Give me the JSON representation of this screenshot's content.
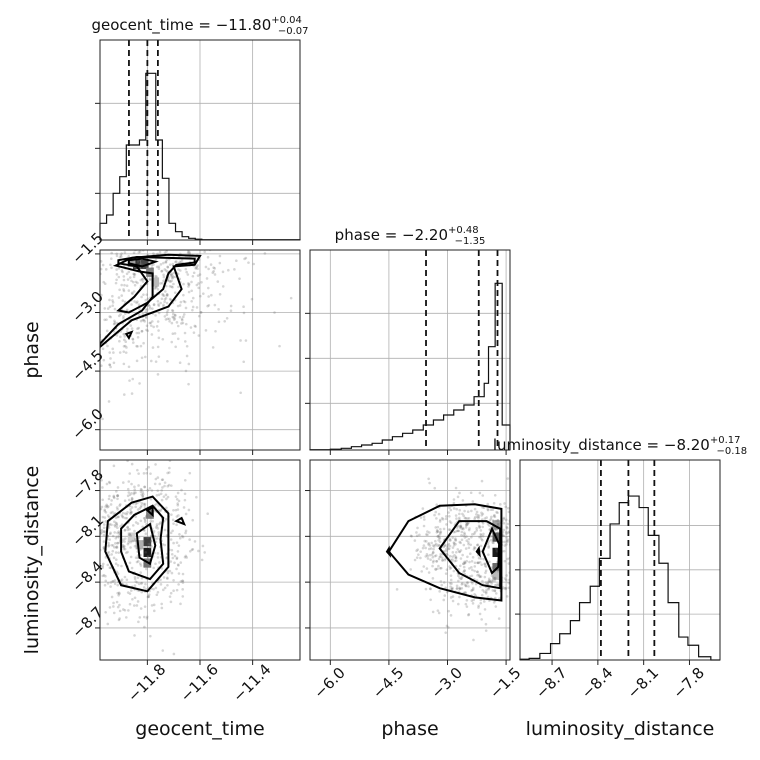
{
  "chart_data": {
    "type": "corner",
    "parameters": [
      "geocent_time",
      "phase",
      "luminosity_distance"
    ],
    "axis_labels": {
      "geocent_time": "geocent_time",
      "phase": "phase",
      "luminosity_distance": "luminosity_distance"
    },
    "ranges": {
      "geocent_time": [
        -11.98,
        -11.22
      ],
      "phase": [
        -6.52,
        -1.4
      ],
      "luminosity_distance": [
        -8.91,
        -7.6
      ]
    },
    "ticks": {
      "geocent_time": {
        "values": [
          -11.8,
          -11.6,
          -11.4
        ],
        "labels": [
          "−11.8",
          "−11.6",
          "−11.4"
        ]
      },
      "phase": {
        "values": [
          -6.0,
          -4.5,
          -3.0,
          -1.5
        ],
        "labels": [
          "−6.0",
          "−4.5",
          "−3.0",
          "−1.5"
        ]
      },
      "luminosity_distance": {
        "values": [
          -8.7,
          -8.4,
          -8.1,
          -7.8
        ],
        "labels": [
          "−8.7",
          "−8.4",
          "−8.1",
          "−7.8"
        ]
      }
    },
    "grid": true,
    "marginals": [
      {
        "param": "geocent_time",
        "title": {
          "prefix": "geocent_time = −11.80",
          "upper": "+0.04",
          "lower": "−0.07"
        },
        "quantiles": [
          -11.87,
          -11.8,
          -11.76
        ],
        "hist": [
          {
            "x": -11.98,
            "y": 0.1
          },
          {
            "x": -11.955,
            "y": 0.15
          },
          {
            "x": -11.93,
            "y": 0.28
          },
          {
            "x": -11.905,
            "y": 0.38
          },
          {
            "x": -11.88,
            "y": 0.57
          },
          {
            "x": -11.855,
            "y": 0.57
          },
          {
            "x": -11.83,
            "y": 0.6
          },
          {
            "x": -11.806,
            "y": 1.0
          },
          {
            "x": -11.787,
            "y": 1.0
          },
          {
            "x": -11.768,
            "y": 0.6
          },
          {
            "x": -11.743,
            "y": 0.37
          },
          {
            "x": -11.718,
            "y": 0.1
          },
          {
            "x": -11.693,
            "y": 0.05
          },
          {
            "x": -11.668,
            "y": 0.02
          },
          {
            "x": -11.643,
            "y": 0.01
          },
          {
            "x": -11.618,
            "y": 0.005
          },
          {
            "x": -11.593,
            "y": 0.002
          },
          {
            "x": -11.22,
            "y": 0.0
          }
        ]
      },
      {
        "param": "phase",
        "title": {
          "prefix": "phase = −2.20",
          "upper": "+0.48",
          "lower": "−1.35"
        },
        "quantiles": [
          -3.55,
          -2.2,
          -1.72
        ],
        "hist": [
          {
            "x": -6.52,
            "y": 0.002
          },
          {
            "x": -6.0,
            "y": 0.005
          },
          {
            "x": -5.72,
            "y": 0.01
          },
          {
            "x": -5.46,
            "y": 0.02
          },
          {
            "x": -5.2,
            "y": 0.03
          },
          {
            "x": -4.93,
            "y": 0.04
          },
          {
            "x": -4.67,
            "y": 0.06
          },
          {
            "x": -4.41,
            "y": 0.08
          },
          {
            "x": -4.15,
            "y": 0.1
          },
          {
            "x": -3.89,
            "y": 0.12
          },
          {
            "x": -3.62,
            "y": 0.15
          },
          {
            "x": -3.36,
            "y": 0.18
          },
          {
            "x": -3.1,
            "y": 0.21
          },
          {
            "x": -2.84,
            "y": 0.24
          },
          {
            "x": -2.58,
            "y": 0.27
          },
          {
            "x": -2.32,
            "y": 0.32
          },
          {
            "x": -2.06,
            "y": 0.4
          },
          {
            "x": -1.95,
            "y": 0.62
          },
          {
            "x": -1.78,
            "y": 1.0
          },
          {
            "x": -1.6,
            "y": 0.15
          },
          {
            "x": -1.4,
            "y": 0.0
          }
        ]
      },
      {
        "param": "luminosity_distance",
        "title": {
          "prefix": "luminosity_distance = −8.20",
          "upper": "+0.17",
          "lower": "−0.18"
        },
        "quantiles": [
          -8.38,
          -8.2,
          -8.03
        ],
        "hist": [
          {
            "x": -8.91,
            "y": 0.005
          },
          {
            "x": -8.85,
            "y": 0.01
          },
          {
            "x": -8.78,
            "y": 0.04
          },
          {
            "x": -8.71,
            "y": 0.1
          },
          {
            "x": -8.65,
            "y": 0.16
          },
          {
            "x": -8.58,
            "y": 0.24
          },
          {
            "x": -8.52,
            "y": 0.35
          },
          {
            "x": -8.45,
            "y": 0.45
          },
          {
            "x": -8.39,
            "y": 0.62
          },
          {
            "x": -8.32,
            "y": 0.83
          },
          {
            "x": -8.26,
            "y": 0.96
          },
          {
            "x": -8.2,
            "y": 1.0
          },
          {
            "x": -8.13,
            "y": 0.93
          },
          {
            "x": -8.07,
            "y": 0.76
          },
          {
            "x": -8.0,
            "y": 0.59
          },
          {
            "x": -7.94,
            "y": 0.35
          },
          {
            "x": -7.87,
            "y": 0.14
          },
          {
            "x": -7.81,
            "y": 0.09
          },
          {
            "x": -7.74,
            "y": 0.02
          },
          {
            "x": -7.66,
            "y": 0.0
          }
        ]
      }
    ],
    "joint": [
      {
        "x": "geocent_time",
        "y": "phase",
        "density": [
          {
            "x": -11.84,
            "y": -1.75,
            "v": 0.9
          },
          {
            "x": -11.81,
            "y": -1.75,
            "v": 0.8
          },
          {
            "x": -11.79,
            "y": -1.95,
            "v": 0.55
          },
          {
            "x": -11.77,
            "y": -2.2,
            "v": 0.3
          },
          {
            "x": -11.86,
            "y": -1.7,
            "v": 0.4
          }
        ],
        "contours": [
          [
            [
              -11.91,
              -1.66
            ],
            [
              -11.84,
              -1.58
            ],
            [
              -11.74,
              -1.6
            ],
            [
              -11.62,
              -1.62
            ],
            [
              -11.62,
              -1.72
            ],
            [
              -11.69,
              -1.78
            ],
            [
              -11.72,
              -2.0
            ],
            [
              -11.74,
              -2.4
            ],
            [
              -11.8,
              -2.75
            ],
            [
              -11.87,
              -3.0
            ],
            [
              -11.91,
              -2.95
            ],
            [
              -11.85,
              -2.6
            ],
            [
              -11.8,
              -2.2
            ],
            [
              -11.84,
              -1.82
            ],
            [
              -11.91,
              -1.74
            ],
            [
              -11.91,
              -1.66
            ]
          ],
          [
            [
              -11.98,
              -3.8
            ],
            [
              -11.91,
              -3.3
            ],
            [
              -11.82,
              -2.95
            ],
            [
              -11.78,
              -2.6
            ],
            [
              -11.78,
              -2.0
            ],
            [
              -11.83,
              -1.95
            ],
            [
              -11.92,
              -1.8
            ],
            [
              -11.86,
              -1.6
            ],
            [
              -11.72,
              -1.52
            ],
            [
              -11.6,
              -1.55
            ],
            [
              -11.62,
              -1.78
            ],
            [
              -11.7,
              -1.82
            ],
            [
              -11.67,
              -2.4
            ],
            [
              -11.72,
              -2.85
            ],
            [
              -11.86,
              -3.2
            ],
            [
              -11.98,
              -3.88
            ]
          ],
          [
            [
              -11.87,
              -1.66
            ],
            [
              -11.82,
              -1.62
            ],
            [
              -11.77,
              -1.7
            ],
            [
              -11.82,
              -1.82
            ],
            [
              -11.87,
              -1.74
            ],
            [
              -11.87,
              -1.66
            ]
          ],
          [
            [
              -11.88,
              -3.55
            ],
            [
              -11.86,
              -3.5
            ],
            [
              -11.87,
              -3.65
            ],
            [
              -11.88,
              -3.55
            ]
          ]
        ]
      },
      {
        "x": "geocent_time",
        "y": "luminosity_distance",
        "density": [
          {
            "x": -11.8,
            "y": -8.2,
            "v": 1.0
          },
          {
            "x": -11.8,
            "y": -8.13,
            "v": 0.85
          },
          {
            "x": -11.8,
            "y": -8.27,
            "v": 0.6
          },
          {
            "x": -11.83,
            "y": -8.15,
            "v": 0.35
          },
          {
            "x": -11.79,
            "y": -7.95,
            "v": 0.55
          },
          {
            "x": -11.86,
            "y": -8.1,
            "v": 0.2
          }
        ],
        "contours": [
          [
            [
              -11.9,
              -8.05
            ],
            [
              -11.85,
              -7.96
            ],
            [
              -11.78,
              -7.9
            ],
            [
              -11.74,
              -7.98
            ],
            [
              -11.75,
              -8.12
            ],
            [
              -11.74,
              -8.28
            ],
            [
              -11.79,
              -8.38
            ],
            [
              -11.87,
              -8.33
            ],
            [
              -11.9,
              -8.2
            ],
            [
              -11.9,
              -8.05
            ]
          ],
          [
            [
              -11.95,
              -8.0
            ],
            [
              -11.86,
              -7.88
            ],
            [
              -11.78,
              -7.84
            ],
            [
              -11.72,
              -7.95
            ],
            [
              -11.72,
              -8.3
            ],
            [
              -11.8,
              -8.46
            ],
            [
              -11.9,
              -8.42
            ],
            [
              -11.96,
              -8.2
            ],
            [
              -11.95,
              -8.0
            ]
          ],
          [
            [
              -11.84,
              -8.08
            ],
            [
              -11.79,
              -8.02
            ],
            [
              -11.77,
              -8.16
            ],
            [
              -11.79,
              -8.28
            ],
            [
              -11.83,
              -8.24
            ],
            [
              -11.84,
              -8.08
            ]
          ],
          [
            [
              -11.8,
              -7.93
            ],
            [
              -11.78,
              -7.91
            ],
            [
              -11.78,
              -7.96
            ],
            [
              -11.8,
              -7.93
            ]
          ],
          [
            [
              -11.69,
              -8.0
            ],
            [
              -11.67,
              -7.98
            ],
            [
              -11.66,
              -8.02
            ],
            [
              -11.69,
              -8.0
            ]
          ]
        ]
      },
      {
        "x": "phase",
        "y": "luminosity_distance",
        "density": [
          {
            "x": -1.75,
            "y": -8.2,
            "v": 1.0
          },
          {
            "x": -1.75,
            "y": -8.1,
            "v": 0.75
          },
          {
            "x": -1.75,
            "y": -8.3,
            "v": 0.65
          },
          {
            "x": -1.75,
            "y": -8.02,
            "v": 0.4
          },
          {
            "x": -1.75,
            "y": -8.35,
            "v": 0.3
          }
        ],
        "contours": [
          [
            [
              -4.5,
              -8.2
            ],
            [
              -4.0,
              -8.0
            ],
            [
              -3.2,
              -7.9
            ],
            [
              -2.3,
              -7.89
            ],
            [
              -1.62,
              -7.92
            ],
            [
              -1.62,
              -8.52
            ],
            [
              -2.3,
              -8.5
            ],
            [
              -3.2,
              -8.44
            ],
            [
              -4.0,
              -8.35
            ],
            [
              -4.5,
              -8.2
            ]
          ],
          [
            [
              -3.2,
              -8.18
            ],
            [
              -2.7,
              -8.0
            ],
            [
              -2.0,
              -8.0
            ],
            [
              -1.65,
              -8.05
            ],
            [
              -1.65,
              -8.44
            ],
            [
              -2.1,
              -8.42
            ],
            [
              -2.7,
              -8.34
            ],
            [
              -3.2,
              -8.18
            ]
          ],
          [
            [
              -2.1,
              -8.2
            ],
            [
              -1.86,
              -8.05
            ],
            [
              -1.68,
              -8.15
            ],
            [
              -1.7,
              -8.3
            ],
            [
              -1.86,
              -8.34
            ],
            [
              -2.1,
              -8.2
            ]
          ],
          [
            [
              -2.25,
              -8.2
            ],
            [
              -2.2,
              -8.18
            ],
            [
              -2.18,
              -8.22
            ],
            [
              -2.25,
              -8.2
            ]
          ],
          [
            [
              -4.55,
              -8.2
            ],
            [
              -4.5,
              -8.18
            ],
            [
              -4.48,
              -8.22
            ],
            [
              -4.55,
              -8.2
            ]
          ]
        ]
      }
    ]
  }
}
